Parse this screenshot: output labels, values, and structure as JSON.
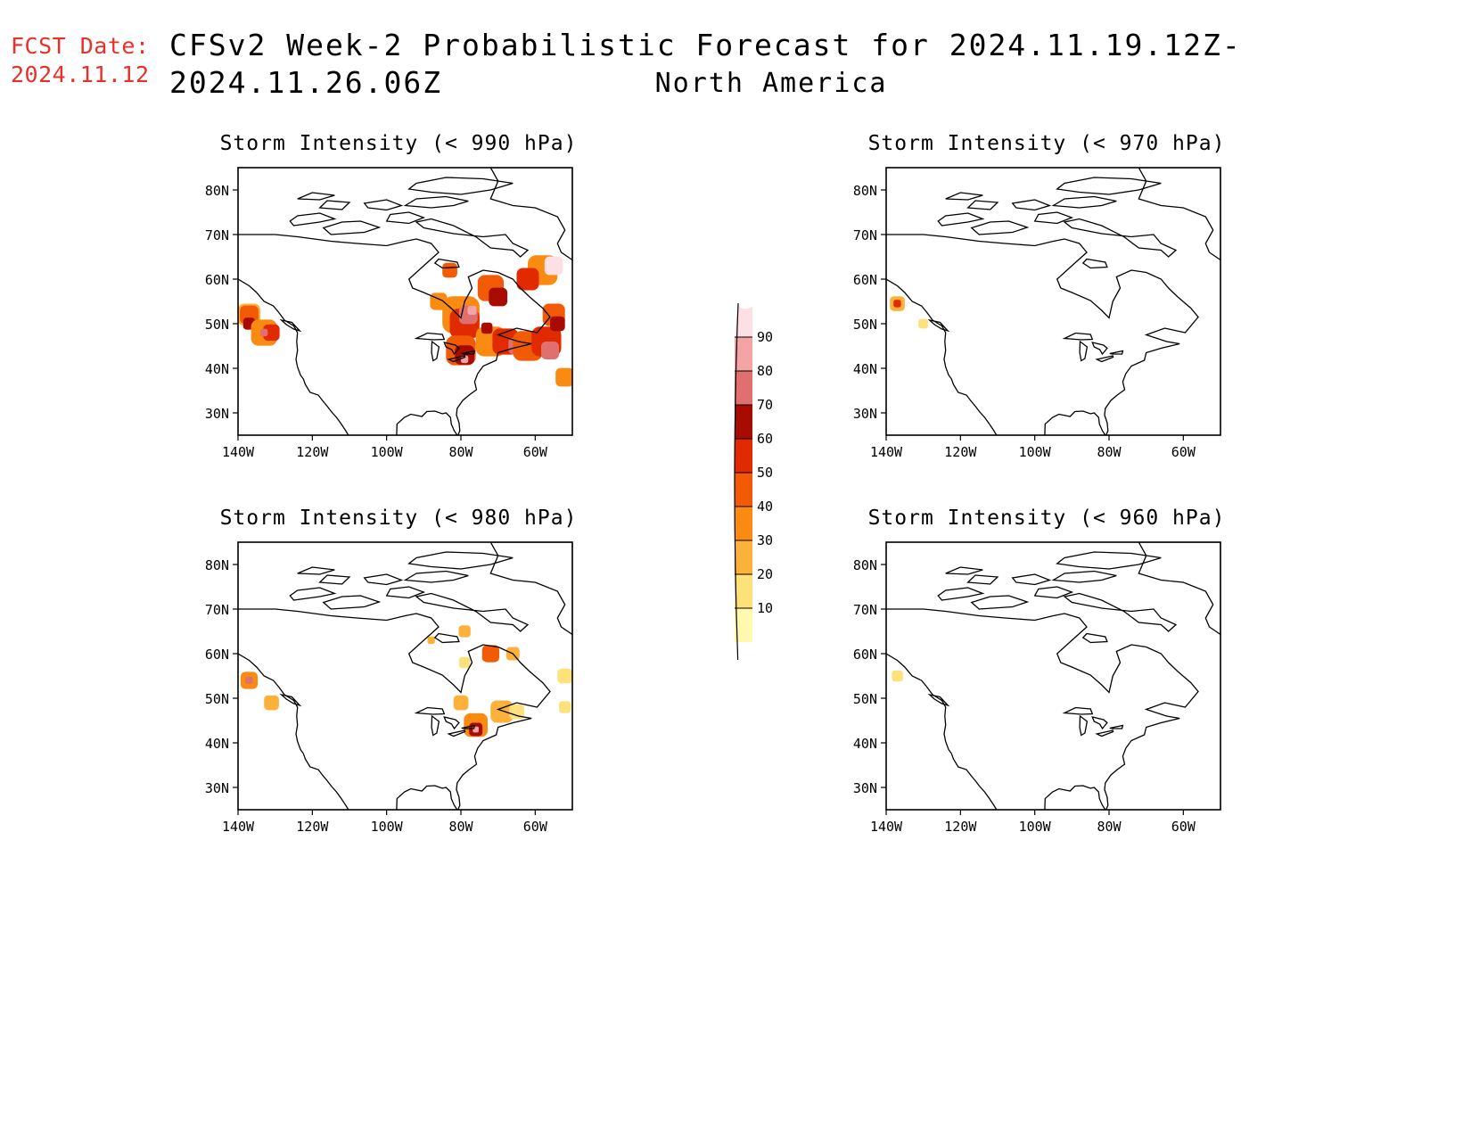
{
  "header": {
    "fcst_label": "FCST Date:",
    "fcst_date": "2024.11.12",
    "title": "CFSv2 Week-2 Probabilistic Forecast for 2024.11.19.12Z-2024.11.26.06Z",
    "subtitle": "North America"
  },
  "panels": [
    {
      "id": "p990",
      "title": "Storm Intensity (< 990 hPa)"
    },
    {
      "id": "p970",
      "title": "Storm Intensity (< 970 hPa)"
    },
    {
      "id": "p980",
      "title": "Storm Intensity (< 980 hPa)"
    },
    {
      "id": "p960",
      "title": "Storm Intensity (< 960 hPa)"
    }
  ],
  "axes": {
    "lat_labels": [
      "30N",
      "40N",
      "50N",
      "60N",
      "70N",
      "80N"
    ],
    "lon_labels": [
      "140W",
      "120W",
      "100W",
      "80W",
      "60W"
    ]
  },
  "colorbar": {
    "levels": [
      "10",
      "20",
      "30",
      "40",
      "50",
      "60",
      "70",
      "80",
      "90"
    ],
    "colors": [
      "#fff9b0",
      "#fde17a",
      "#fbb13a",
      "#f98a12",
      "#f25a06",
      "#e22a00",
      "#a80c00",
      "#e07070",
      "#f4a4a4",
      "#fde0e6"
    ]
  }
}
